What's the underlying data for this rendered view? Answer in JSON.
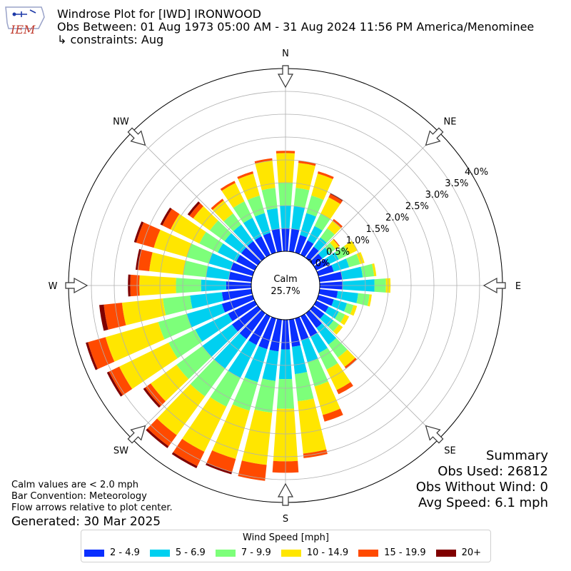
{
  "header": {
    "title": "Windrose Plot for [IWD] IRONWOOD",
    "subtitle": "Obs Between: 01 Aug 1973 05:00 AM - 31 Aug 2024 11:56 PM America/Menominee",
    "constraints": "↳ constraints: Aug"
  },
  "logo": {
    "text": "IEM"
  },
  "summary": {
    "title": "Summary",
    "obs_used": "Obs Used: 26812",
    "obs_without_wind": "Obs Without Wind: 0",
    "avg_speed": "Avg Speed: 6.1 mph"
  },
  "notes": {
    "calm": "Calm values are < 2.0 mph",
    "bar_convention": "Bar Convention: Meteorology",
    "flow_arrows": "Flow arrows relative to plot center.",
    "generated": "Generated: 30 Mar 2025"
  },
  "chart_data": {
    "type": "windrose",
    "calm_label": "Calm",
    "calm_value": "25.7%",
    "calm_percent": 25.7,
    "radial_max": 4.0,
    "radial_ticks": [
      0.0,
      0.5,
      1.0,
      1.5,
      2.0,
      2.5,
      3.0,
      3.5,
      4.0
    ],
    "radial_tick_labels": [
      "0.0%",
      "0.5%",
      "1.0%",
      "1.5%",
      "2.0%",
      "2.5%",
      "3.0%",
      "3.5%",
      "4.0%"
    ],
    "directions": [
      "N",
      "NE",
      "E",
      "SE",
      "S",
      "SW",
      "W",
      "NW"
    ],
    "sector_angles": [
      0,
      10,
      20,
      30,
      40,
      50,
      60,
      70,
      80,
      90,
      100,
      110,
      120,
      130,
      140,
      150,
      160,
      170,
      180,
      190,
      200,
      210,
      220,
      230,
      240,
      250,
      260,
      270,
      280,
      290,
      300,
      310,
      320,
      330,
      340,
      350
    ],
    "legend_title": "Wind Speed [mph]",
    "bins": [
      {
        "label": "2 - 4.9",
        "color": "#0a2fff"
      },
      {
        "label": "5 - 6.9",
        "color": "#00d0f0"
      },
      {
        "label": "7 - 9.9",
        "color": "#7dff7a"
      },
      {
        "label": "10 - 14.9",
        "color": "#ffe600"
      },
      {
        "label": "15 - 19.9",
        "color": "#ff4a00"
      },
      {
        "label": "20+",
        "color": "#800000"
      }
    ],
    "cumulative": [
      [
        0.5,
        1.0,
        1.5,
        2.15,
        2.2,
        2.2
      ],
      [
        0.5,
        1.0,
        1.4,
        1.95,
        2.0,
        2.0
      ],
      [
        0.4,
        0.9,
        1.3,
        1.8,
        1.85,
        1.85
      ],
      [
        0.35,
        0.7,
        1.0,
        1.4,
        1.48,
        1.5
      ],
      [
        0.3,
        0.55,
        0.8,
        1.0,
        1.05,
        1.05
      ],
      [
        0.25,
        0.45,
        0.6,
        0.7,
        0.72,
        0.72
      ],
      [
        0.3,
        0.55,
        0.8,
        1.0,
        1.0,
        1.0
      ],
      [
        0.35,
        0.7,
        0.95,
        1.05,
        1.05,
        1.05
      ],
      [
        0.5,
        0.95,
        1.2,
        1.25,
        1.25,
        1.25
      ],
      [
        0.5,
        1.2,
        1.45,
        1.55,
        1.55,
        1.55
      ],
      [
        0.4,
        0.85,
        1.1,
        1.15,
        1.15,
        1.15
      ],
      [
        0.35,
        0.65,
        0.8,
        0.88,
        0.88,
        0.88
      ],
      [
        0.3,
        0.55,
        0.7,
        0.8,
        0.8,
        0.8
      ],
      [
        0.3,
        0.55,
        0.7,
        0.8,
        0.8,
        0.8
      ],
      [
        0.4,
        0.85,
        1.2,
        1.45,
        1.5,
        1.5
      ],
      [
        0.5,
        0.9,
        1.3,
        1.8,
        1.9,
        1.9
      ],
      [
        0.5,
        1.0,
        1.55,
        2.2,
        2.35,
        2.35
      ],
      [
        0.6,
        1.2,
        1.8,
        2.95,
        3.05,
        3.05
      ],
      [
        0.65,
        1.3,
        1.95,
        3.1,
        3.35,
        3.35
      ],
      [
        0.7,
        1.35,
        2.05,
        3.2,
        3.55,
        3.55
      ],
      [
        0.7,
        1.45,
        2.1,
        3.2,
        3.5,
        3.55
      ],
      [
        0.7,
        1.5,
        2.2,
        3.3,
        3.65,
        3.7
      ],
      [
        0.7,
        1.5,
        2.25,
        3.3,
        3.6,
        3.65
      ],
      [
        0.7,
        1.5,
        2.2,
        2.9,
        3.05,
        3.1
      ],
      [
        0.65,
        1.45,
        2.1,
        3.3,
        3.55,
        3.6
      ],
      [
        0.7,
        1.5,
        2.15,
        3.35,
        3.75,
        3.8
      ],
      [
        0.65,
        1.35,
        1.95,
        2.85,
        3.25,
        3.35
      ],
      [
        0.55,
        1.1,
        1.65,
        2.45,
        2.65,
        2.7
      ],
      [
        0.5,
        1.0,
        1.5,
        2.25,
        2.5,
        2.55
      ],
      [
        0.5,
        1.0,
        1.5,
        2.25,
        2.65,
        2.7
      ],
      [
        0.45,
        0.9,
        1.35,
        2.05,
        2.25,
        2.3
      ],
      [
        0.45,
        0.9,
        1.3,
        1.75,
        1.85,
        1.9
      ],
      [
        0.45,
        0.9,
        1.2,
        1.55,
        1.6,
        1.6
      ],
      [
        0.45,
        0.9,
        1.3,
        1.75,
        1.8,
        1.8
      ],
      [
        0.45,
        0.9,
        1.3,
        1.8,
        1.85,
        1.85
      ],
      [
        0.5,
        0.95,
        1.4,
        2.0,
        2.05,
        2.05
      ]
    ]
  }
}
